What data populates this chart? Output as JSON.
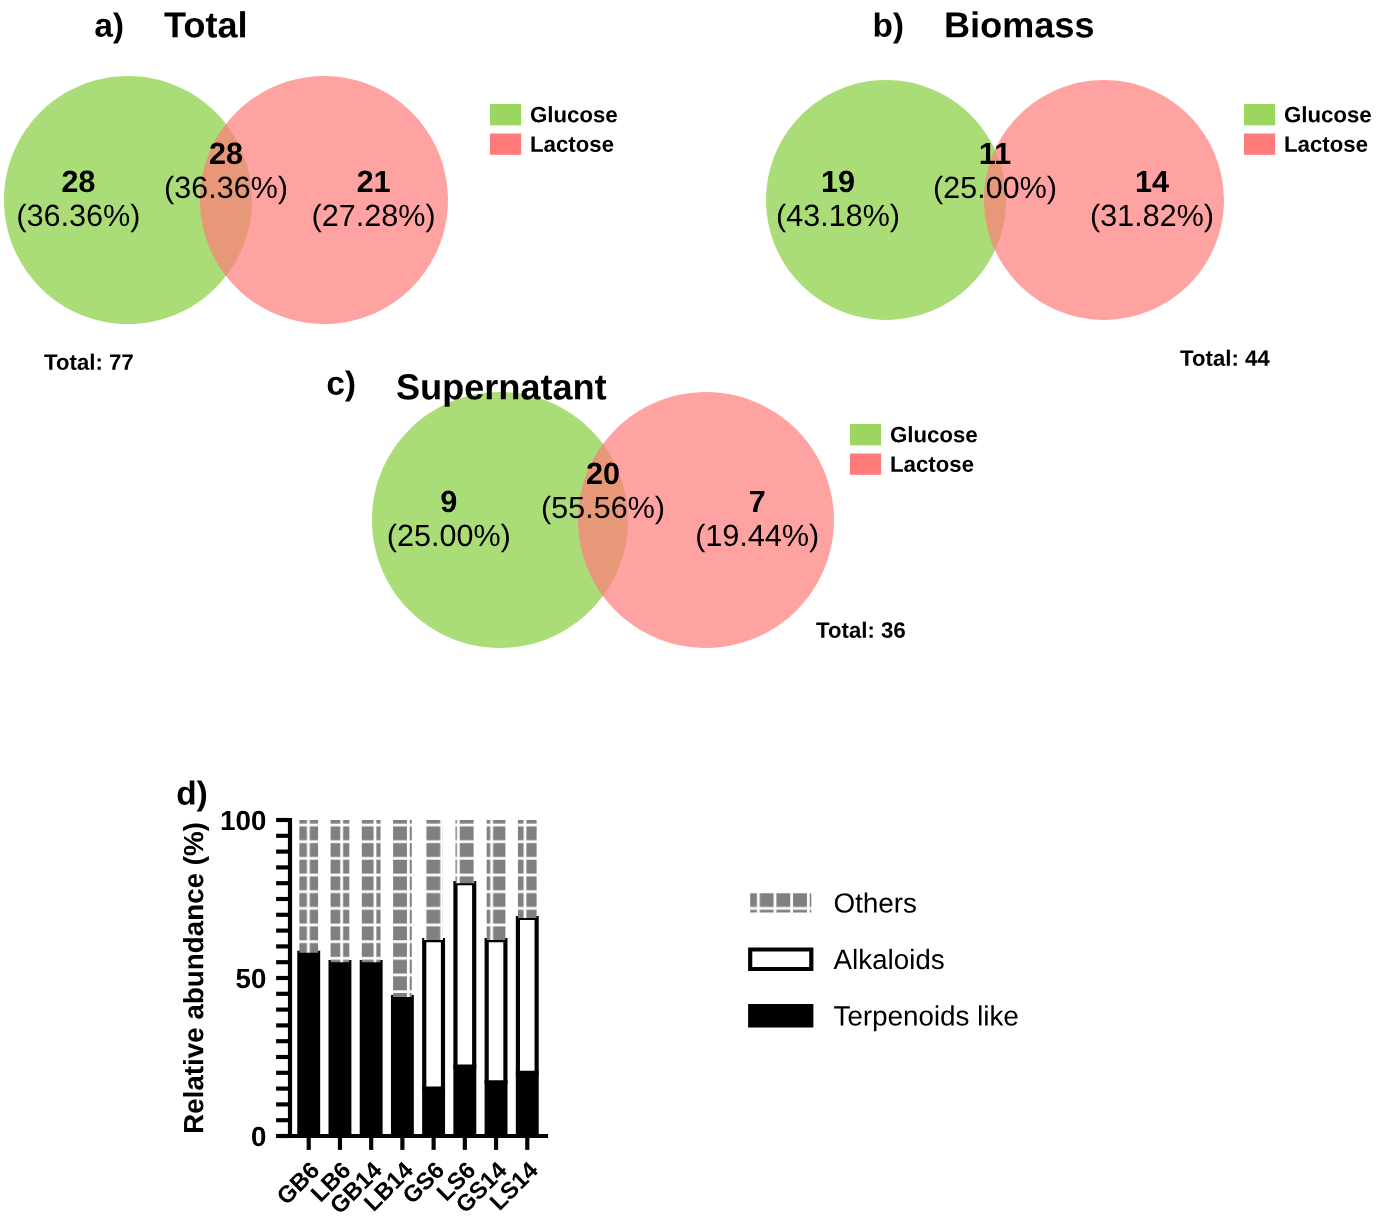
{
  "chart_data": [
    {
      "type": "other",
      "title": "Total",
      "categories": [
        "Glucose",
        "Lactose"
      ],
      "colors": [
        "#9bd65f",
        "#ff7b7b"
      ],
      "annotations": [
        "a)",
        "Total: 77",
        "28",
        "(36.36%)",
        "28",
        "(36.36%)",
        "21",
        "(27.28%)"
      ]
    },
    {
      "type": "other",
      "title": "Biomass",
      "categories": [
        "Glucose",
        "Lactose"
      ],
      "colors": [
        "#9bd65f",
        "#ff7b7b"
      ],
      "annotations": [
        "b)",
        "Total: 44",
        "19",
        "(43.18%)",
        "11",
        "(25.00%)",
        "14",
        "(31.82%)"
      ]
    },
    {
      "type": "other",
      "title": "Supernatant",
      "categories": [
        "Glucose",
        "Lactose"
      ],
      "colors": [
        "#9bd65f",
        "#ff7b7b"
      ],
      "annotations": [
        "c)",
        "Total: 36",
        "9",
        "(25.00%)",
        "20",
        "(55.56%)",
        "7",
        "(19.44%)"
      ]
    },
    {
      "type": "bar",
      "stacked": true,
      "ylabel": "Relative abundance (%)",
      "annotations": [
        "d)"
      ],
      "legend": "right",
      "categories": [
        "GB6",
        "LB6",
        "GB14",
        "LB14",
        "GS6",
        "LS6",
        "GS14",
        "LS14"
      ],
      "ylim": [
        0,
        100
      ],
      "yticks": [
        0,
        {
          "value": 5,
          "label": null
        },
        {
          "value": 10,
          "label": null
        },
        {
          "value": 15,
          "label": null
        },
        {
          "value": 20,
          "label": null
        },
        {
          "value": 25,
          "label": null
        },
        {
          "value": 30,
          "label": null
        },
        {
          "value": 35,
          "label": null
        },
        {
          "value": 40,
          "label": null
        },
        {
          "value": 45,
          "label": null
        },
        50,
        {
          "value": 55,
          "label": null
        },
        {
          "value": 60,
          "label": null
        },
        {
          "value": 65,
          "label": null
        },
        {
          "value": 70,
          "label": null
        },
        {
          "value": 75,
          "label": null
        },
        {
          "value": 80,
          "label": null
        },
        {
          "value": 85,
          "label": null
        },
        {
          "value": 90,
          "label": null
        },
        {
          "value": 95,
          "label": null
        },
        100
      ],
      "series": [
        {
          "name": "Terpenoids like",
          "color": "#000000",
          "values": [
            58,
            55,
            55,
            44,
            15,
            22,
            17,
            20
          ]
        },
        {
          "name": "Alkaloids",
          "color": "#ffffff",
          "values": [
            0,
            0,
            0,
            0,
            47,
            58,
            45,
            49
          ]
        },
        {
          "name": "Others",
          "color": "#808080",
          "values": [
            42,
            45,
            45,
            56,
            38,
            20,
            38,
            31
          ]
        }
      ]
    }
  ]
}
